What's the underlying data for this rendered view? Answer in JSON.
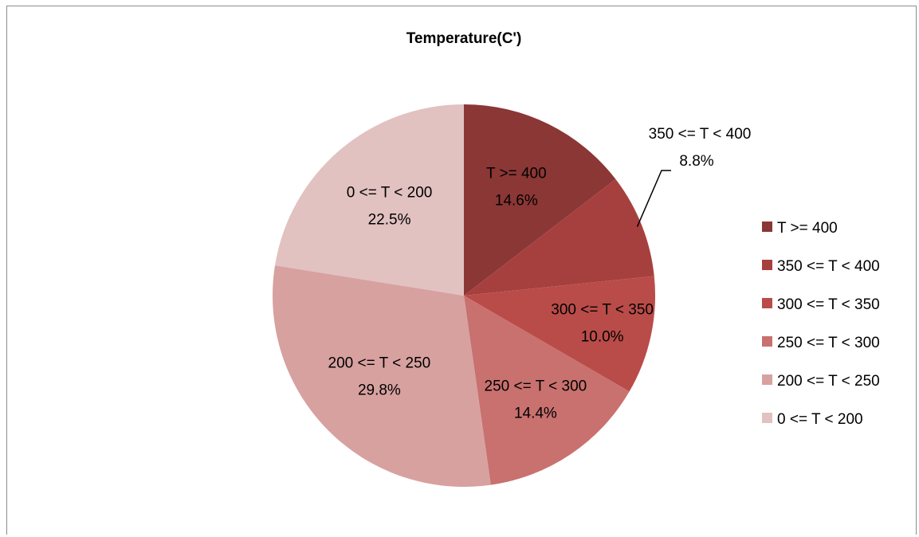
{
  "chart_data": {
    "type": "pie",
    "title": "Temperature(C')",
    "slices": [
      {
        "label": "T >= 400",
        "value": 14.6,
        "display": "14.6%",
        "color": "#8b3735"
      },
      {
        "label": "350 <= T < 400",
        "value": 8.8,
        "display": "8.8%",
        "color": "#a6403e"
      },
      {
        "label": "300 <= T < 350",
        "value": 10.0,
        "display": "10.0%",
        "color": "#b94c49"
      },
      {
        "label": "250 <= T < 300",
        "value": 14.4,
        "display": "14.4%",
        "color": "#c8716f"
      },
      {
        "label": "200 <= T < 250",
        "value": 29.8,
        "display": "29.8%",
        "color": "#d7a19f"
      },
      {
        "label": "0 <= T < 200",
        "value": 22.5,
        "display": "22.5%",
        "color": "#e2c1c1"
      }
    ],
    "legend": {
      "position": "right",
      "entries": [
        "T >= 400",
        "350 <= T < 400",
        "300 <= T < 350",
        "250 <= T < 300",
        "200 <= T < 250",
        "0 <= T < 200"
      ]
    }
  }
}
